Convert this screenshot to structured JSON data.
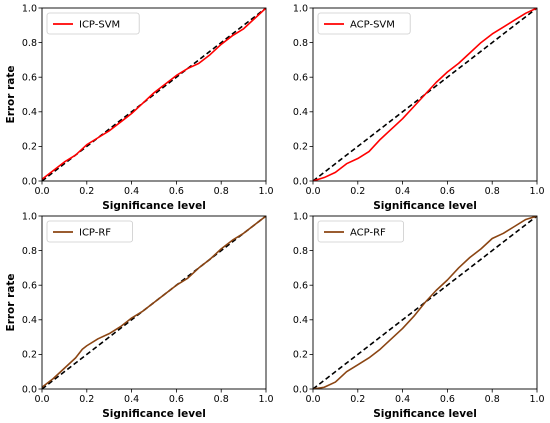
{
  "chart_data": [
    {
      "type": "line",
      "xlabel": "Significance level",
      "ylabel": "Error rate",
      "xlim": [
        0,
        1
      ],
      "ylim": [
        0,
        1
      ],
      "xticks": [
        "0.0",
        "0.2",
        "0.4",
        "0.6",
        "0.8",
        "1.0"
      ],
      "yticks": [
        "0.0",
        "0.2",
        "0.4",
        "0.6",
        "0.8",
        "1.0"
      ],
      "legend": "top-left",
      "series": [
        {
          "name": "ICP-SVM",
          "color": "#ff0000",
          "x": [
            0,
            0.05,
            0.1,
            0.15,
            0.2,
            0.25,
            0.3,
            0.35,
            0.4,
            0.45,
            0.5,
            0.55,
            0.6,
            0.65,
            0.7,
            0.75,
            0.8,
            0.85,
            0.9,
            0.95,
            1.0
          ],
          "y": [
            0.01,
            0.06,
            0.11,
            0.15,
            0.21,
            0.25,
            0.29,
            0.34,
            0.39,
            0.45,
            0.51,
            0.56,
            0.61,
            0.65,
            0.68,
            0.73,
            0.79,
            0.84,
            0.88,
            0.94,
            1.0
          ]
        },
        {
          "name": "",
          "color": "#000000",
          "dashed": true,
          "x": [
            0,
            1
          ],
          "y": [
            0,
            1
          ]
        }
      ]
    },
    {
      "type": "line",
      "xlabel": "Significance level",
      "ylabel": "",
      "xlim": [
        0,
        1
      ],
      "ylim": [
        0,
        1
      ],
      "xticks": [
        "0.0",
        "0.2",
        "0.4",
        "0.6",
        "0.8",
        "1.0"
      ],
      "yticks": [
        "0.0",
        "0.2",
        "0.4",
        "0.6",
        "0.8",
        "1.0"
      ],
      "legend": "top-left",
      "series": [
        {
          "name": "ACP-SVM",
          "color": "#ff0000",
          "x": [
            0,
            0.05,
            0.1,
            0.15,
            0.2,
            0.25,
            0.3,
            0.35,
            0.4,
            0.45,
            0.5,
            0.55,
            0.6,
            0.65,
            0.7,
            0.75,
            0.8,
            0.85,
            0.9,
            0.95,
            1.0
          ],
          "y": [
            0.0,
            0.02,
            0.05,
            0.1,
            0.13,
            0.17,
            0.24,
            0.3,
            0.36,
            0.43,
            0.5,
            0.57,
            0.63,
            0.68,
            0.74,
            0.8,
            0.85,
            0.89,
            0.93,
            0.97,
            1.0
          ]
        },
        {
          "name": "",
          "color": "#000000",
          "dashed": true,
          "x": [
            0,
            1
          ],
          "y": [
            0,
            1
          ]
        }
      ]
    },
    {
      "type": "line",
      "xlabel": "Significance level",
      "ylabel": "Error rate",
      "xlim": [
        0,
        1
      ],
      "ylim": [
        0,
        1
      ],
      "xticks": [
        "0.0",
        "0.2",
        "0.4",
        "0.6",
        "0.8",
        "1.0"
      ],
      "yticks": [
        "0.0",
        "0.2",
        "0.4",
        "0.6",
        "0.8",
        "1.0"
      ],
      "legend": "top-left",
      "series": [
        {
          "name": "ICP-RF",
          "color": "#8b4513",
          "x": [
            0,
            0.05,
            0.1,
            0.15,
            0.18,
            0.2,
            0.25,
            0.3,
            0.35,
            0.4,
            0.45,
            0.5,
            0.55,
            0.6,
            0.65,
            0.7,
            0.75,
            0.8,
            0.85,
            0.9,
            0.95,
            1.0
          ],
          "y": [
            0.01,
            0.06,
            0.12,
            0.18,
            0.23,
            0.25,
            0.29,
            0.32,
            0.36,
            0.41,
            0.45,
            0.5,
            0.55,
            0.6,
            0.64,
            0.7,
            0.75,
            0.81,
            0.86,
            0.9,
            0.95,
            1.0
          ]
        },
        {
          "name": "",
          "color": "#000000",
          "dashed": true,
          "x": [
            0,
            1
          ],
          "y": [
            0,
            1
          ]
        }
      ]
    },
    {
      "type": "line",
      "xlabel": "Significance level",
      "ylabel": "",
      "xlim": [
        0,
        1
      ],
      "ylim": [
        0,
        1
      ],
      "xticks": [
        "0.0",
        "0.2",
        "0.4",
        "0.6",
        "0.8",
        "1.0"
      ],
      "yticks": [
        "0.0",
        "0.2",
        "0.4",
        "0.6",
        "0.8",
        "1.0"
      ],
      "legend": "top-left",
      "series": [
        {
          "name": "ACP-RF",
          "color": "#8b4513",
          "x": [
            0,
            0.05,
            0.1,
            0.15,
            0.2,
            0.25,
            0.3,
            0.35,
            0.4,
            0.45,
            0.5,
            0.55,
            0.6,
            0.65,
            0.7,
            0.75,
            0.8,
            0.85,
            0.9,
            0.95,
            1.0
          ],
          "y": [
            0.0,
            0.01,
            0.04,
            0.1,
            0.14,
            0.18,
            0.23,
            0.29,
            0.35,
            0.42,
            0.5,
            0.57,
            0.63,
            0.7,
            0.76,
            0.81,
            0.87,
            0.9,
            0.94,
            0.98,
            1.0
          ]
        },
        {
          "name": "",
          "color": "#000000",
          "dashed": true,
          "x": [
            0,
            1
          ],
          "y": [
            0,
            1
          ]
        }
      ]
    }
  ]
}
